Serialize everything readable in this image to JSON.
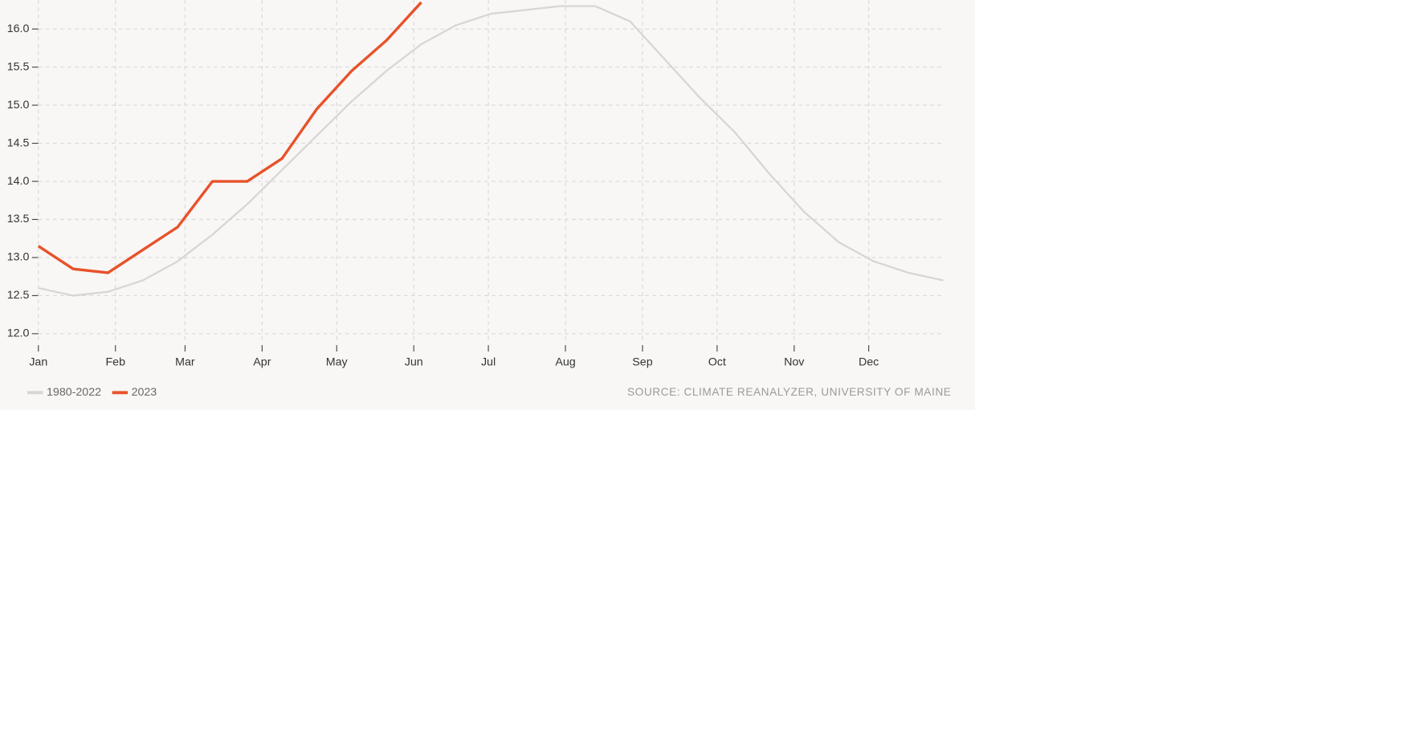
{
  "chart_data": {
    "type": "line",
    "x": [
      0,
      14,
      28,
      42,
      56,
      70,
      84,
      98,
      112,
      126,
      140,
      154,
      168,
      182,
      196,
      210,
      224,
      238,
      252,
      266,
      280,
      294,
      308,
      322,
      336,
      350,
      364
    ],
    "series": [
      {
        "name": "1980-2022",
        "color": "#d6d6d4",
        "values": [
          12.6,
          12.5,
          12.55,
          12.7,
          12.95,
          13.3,
          13.7,
          14.15,
          14.6,
          15.05,
          15.45,
          15.8,
          16.05,
          16.2,
          16.25,
          16.3,
          16.3,
          16.1,
          15.6,
          15.1,
          14.65,
          14.1,
          13.6,
          13.2,
          12.95,
          12.8,
          12.7
        ]
      },
      {
        "name": "2023",
        "color": "#e8522b",
        "values": [
          13.15,
          12.85,
          12.8,
          13.1,
          13.4,
          14.0,
          14.0,
          14.3,
          14.95,
          15.45,
          15.85,
          16.35,
          null,
          null,
          null,
          null,
          null,
          null,
          null,
          null,
          null,
          null,
          null,
          null,
          null,
          null,
          null
        ]
      }
    ],
    "xlim": [
      0,
      365
    ],
    "xticks": [
      {
        "value": 0,
        "label": "Jan"
      },
      {
        "value": 31,
        "label": "Feb"
      },
      {
        "value": 59,
        "label": "Mar"
      },
      {
        "value": 90,
        "label": "Apr"
      },
      {
        "value": 120,
        "label": "May"
      },
      {
        "value": 151,
        "label": "Jun"
      },
      {
        "value": 181,
        "label": "Jul"
      },
      {
        "value": 212,
        "label": "Aug"
      },
      {
        "value": 243,
        "label": "Sep"
      },
      {
        "value": 273,
        "label": "Oct"
      },
      {
        "value": 304,
        "label": "Nov"
      },
      {
        "value": 334,
        "label": "Dec"
      }
    ],
    "ylim": [
      11.85,
      16.38
    ],
    "yticks": [
      {
        "value": 12,
        "label": "12.0"
      },
      {
        "value": 12.5,
        "label": "12.5"
      },
      {
        "value": 13,
        "label": "13.0"
      },
      {
        "value": 13.5,
        "label": "13.5"
      },
      {
        "value": 14,
        "label": "14.0"
      },
      {
        "value": 14.5,
        "label": "14.5"
      },
      {
        "value": 15,
        "label": "15.0"
      },
      {
        "value": 15.5,
        "label": "15.5"
      },
      {
        "value": 16,
        "label": "16.0"
      }
    ],
    "grid": true,
    "source": "SOURCE: CLIMATE REANALYZER, UNIVERSITY OF MAINE"
  }
}
